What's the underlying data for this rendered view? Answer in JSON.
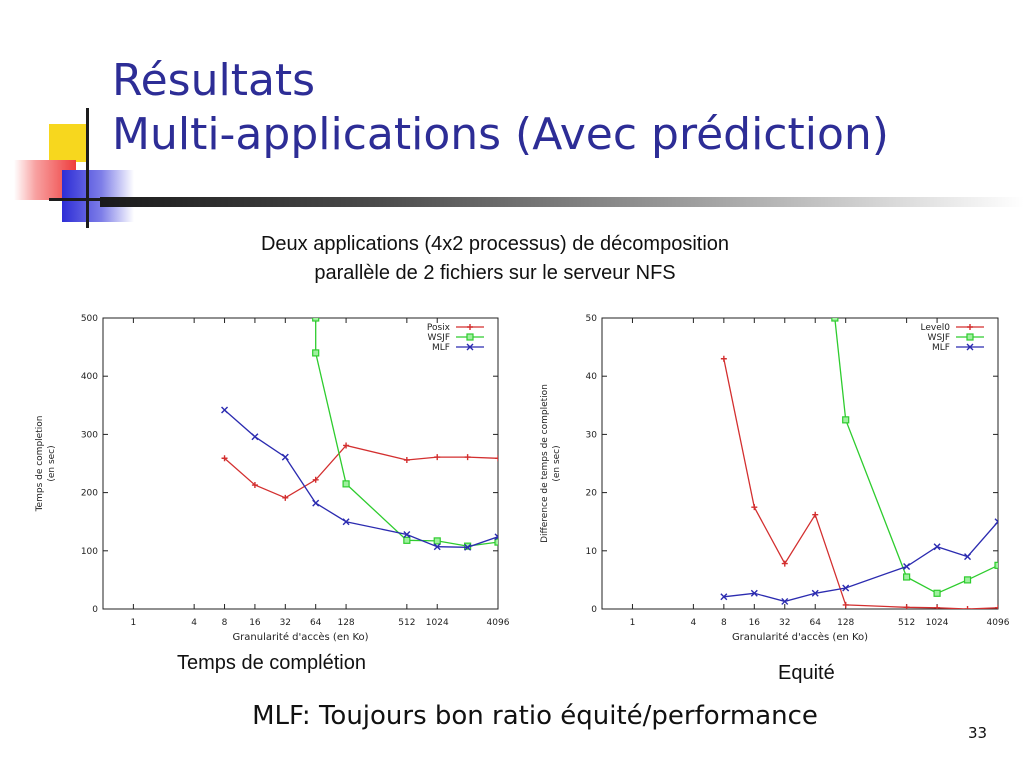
{
  "slide": {
    "title_line1": "Résultats",
    "title_line2": "Multi-applications (Avec prédiction)",
    "subtitle_line1": "Deux applications (4x2 processus) de décomposition",
    "subtitle_line2": "parallèle de 2 fichiers sur le serveur NFS",
    "caption_left": "Temps de complétion",
    "caption_right": "Equité",
    "conclusion": "MLF: Toujours bon ratio équité/performance",
    "page_number": "33"
  },
  "chart_data": [
    {
      "type": "line",
      "xlabel": "Granularité d'accès (en Ko)",
      "ylabel_line1": "Temps de completion",
      "ylabel_line2": "(en sec)",
      "x_scale": "log2",
      "categories": [
        "1",
        "4",
        "8",
        "16",
        "32",
        "64",
        "128",
        "512",
        "1024",
        "4096"
      ],
      "ylim": [
        0,
        500
      ],
      "yticks": [
        0,
        100,
        200,
        300,
        400,
        500
      ],
      "legend_position": "top-right",
      "grid": false,
      "series": [
        {
          "name": "Posix",
          "color": "#d32f2f",
          "marker": "+",
          "points": [
            [
              8,
              259
            ],
            [
              16,
              213
            ],
            [
              32,
              191
            ],
            [
              64,
              222
            ],
            [
              128,
              281
            ],
            [
              512,
              256
            ],
            [
              1024,
              261
            ],
            [
              2048,
              261
            ],
            [
              4096,
              259
            ]
          ]
        },
        {
          "name": "WSJF",
          "color": "#2ecc2e",
          "marker": "square",
          "points": [
            [
              64,
              500
            ],
            [
              64,
              440
            ],
            [
              128,
              215
            ],
            [
              512,
              118
            ],
            [
              1024,
              117
            ],
            [
              2048,
              108
            ],
            [
              4096,
              115
            ]
          ]
        },
        {
          "name": "MLF",
          "color": "#2b2bb0",
          "marker": "x",
          "points": [
            [
              8,
              342
            ],
            [
              16,
              296
            ],
            [
              32,
              261
            ],
            [
              64,
              182
            ],
            [
              128,
              150
            ],
            [
              512,
              128
            ],
            [
              1024,
              107
            ],
            [
              2048,
              106
            ],
            [
              4096,
              124
            ]
          ]
        }
      ]
    },
    {
      "type": "line",
      "xlabel": "Granularité d'accès (en Ko)",
      "ylabel_line1": "Difference de temps de completion",
      "ylabel_line2": "(en sec)",
      "x_scale": "log2",
      "categories": [
        "1",
        "4",
        "8",
        "16",
        "32",
        "64",
        "128",
        "512",
        "1024",
        "4096"
      ],
      "ylim": [
        0,
        50
      ],
      "yticks": [
        0,
        10,
        20,
        30,
        40,
        50
      ],
      "legend_position": "top-right",
      "grid": false,
      "series": [
        {
          "name": "Level0",
          "color": "#d32f2f",
          "marker": "+",
          "points": [
            [
              8,
              43
            ],
            [
              16,
              17.5
            ],
            [
              32,
              7.8
            ],
            [
              64,
              16.2
            ],
            [
              128,
              0.7
            ],
            [
              512,
              0.3
            ],
            [
              1024,
              0.2
            ],
            [
              2048,
              0
            ],
            [
              4096,
              0.2
            ]
          ]
        },
        {
          "name": "WSJF",
          "color": "#2ecc2e",
          "marker": "square",
          "points": [
            [
              100,
              50
            ],
            [
              128,
              32.5
            ],
            [
              512,
              5.5
            ],
            [
              1024,
              2.7
            ],
            [
              2048,
              5.0
            ],
            [
              4096,
              7.5
            ]
          ]
        },
        {
          "name": "MLF",
          "color": "#2b2bb0",
          "marker": "x",
          "points": [
            [
              8,
              2.1
            ],
            [
              16,
              2.7
            ],
            [
              32,
              1.3
            ],
            [
              64,
              2.7
            ],
            [
              128,
              3.6
            ],
            [
              512,
              7.3
            ],
            [
              1024,
              10.7
            ],
            [
              2048,
              9.0
            ],
            [
              4096,
              15.0
            ]
          ]
        }
      ]
    }
  ]
}
